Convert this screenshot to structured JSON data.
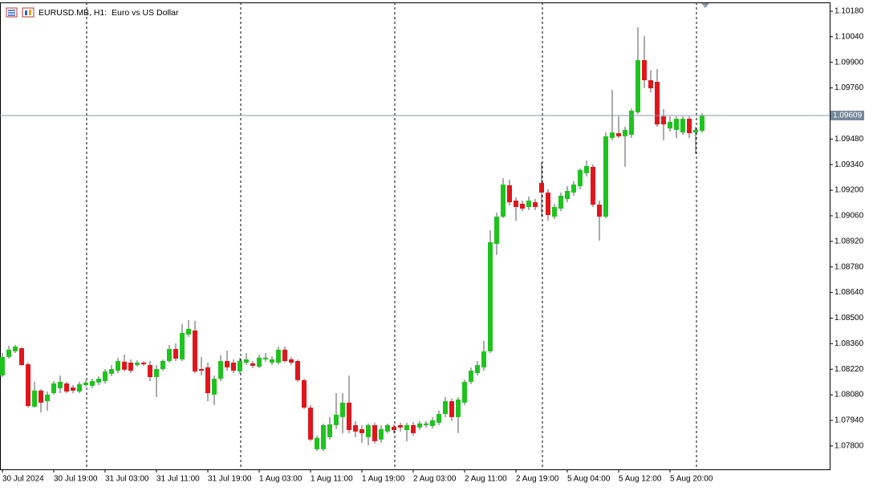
{
  "chart_data": {
    "type": "candlestick",
    "title": "EURUSD.MB, H1:  Euro vs US Dollar",
    "up_color": "#1ec31e",
    "down_color": "#e0161c",
    "wick_color": "#555555",
    "grid": false,
    "categories": [
      "30 Jul 2024",
      null,
      null,
      null,
      null,
      null,
      null,
      null,
      "30 Jul 19:00",
      null,
      null,
      null,
      null,
      null,
      null,
      null,
      "31 Jul 03:00",
      null,
      null,
      null,
      null,
      null,
      null,
      null,
      "31 Jul 11:00",
      null,
      null,
      null,
      null,
      null,
      null,
      null,
      "31 Jul 19:00",
      null,
      null,
      null,
      null,
      null,
      null,
      null,
      "1 Aug 03:00",
      null,
      null,
      null,
      null,
      null,
      null,
      null,
      "1 Aug 11:00",
      null,
      null,
      null,
      null,
      null,
      null,
      null,
      "1 Aug 19:00",
      null,
      null,
      null,
      null,
      null,
      null,
      null,
      "2 Aug 03:00",
      null,
      null,
      null,
      null,
      null,
      null,
      null,
      "2 Aug 11:00",
      null,
      null,
      null,
      null,
      null,
      null,
      null,
      "2 Aug 19:00",
      null,
      null,
      null,
      null,
      null,
      null,
      null,
      "5 Aug 04:00",
      null,
      null,
      null,
      null,
      null,
      null,
      null,
      "5 Aug 12:00",
      null,
      null,
      null,
      null,
      null,
      null,
      null,
      "5 Aug 20:00",
      null,
      null,
      null,
      null,
      null
    ],
    "period_separators": [
      13,
      37,
      61,
      84,
      108
    ],
    "open": [
      1.08186,
      1.08287,
      1.08318,
      1.08335,
      1.08247,
      1.08015,
      1.08103,
      1.08045,
      1.08089,
      1.08116,
      1.08142,
      1.0812,
      1.08098,
      1.08133,
      1.08129,
      1.08147,
      1.08155,
      1.08195,
      1.08212,
      1.08261,
      1.08256,
      1.08243,
      1.08256,
      1.08243,
      1.08177,
      1.08221,
      1.08265,
      1.08331,
      1.08274,
      1.0841,
      1.08432,
      1.08221,
      1.0823,
      1.08081,
      1.08168,
      1.08265,
      1.08256,
      1.08208,
      1.08256,
      1.08252,
      1.08234,
      1.08274,
      1.08256,
      1.08256,
      1.08327,
      1.08274,
      1.08265,
      1.0816,
      1.0801,
      1.07782,
      1.07782,
      1.07848,
      1.07914,
      1.07958,
      1.08037,
      1.07914,
      1.07892,
      1.07848,
      1.07914,
      1.07835,
      1.07879,
      1.07905,
      1.07914,
      1.07887,
      1.07914,
      1.07901,
      1.07914,
      1.07909,
      1.07927,
      1.07975,
      1.08045,
      1.07958,
      1.08037,
      1.08151,
      1.08199,
      1.0823,
      1.08318,
      1.08906,
      1.09055,
      1.09227,
      1.09143,
      1.09126,
      1.09108,
      1.09134,
      1.0924,
      1.09187,
      1.09055,
      1.09099,
      1.09152,
      1.09187,
      1.09222,
      1.09293,
      1.09328,
      1.09121,
      1.09055,
      1.09486,
      1.09512,
      1.09495,
      1.09503,
      1.09626,
      1.09912,
      1.09802,
      1.09793,
      1.09604,
      1.09538,
      1.0953,
      1.09516,
      1.09591,
      1.09516,
      1.09525
    ],
    "high": [
      1.08309,
      1.08348,
      1.08353,
      1.0834,
      1.08256,
      1.08151,
      1.08111,
      1.08098,
      1.08155,
      1.08186,
      1.08151,
      1.08133,
      1.08151,
      1.0816,
      1.08168,
      1.08182,
      1.08221,
      1.08243,
      1.08283,
      1.083,
      1.08274,
      1.08269,
      1.08265,
      1.08265,
      1.08243,
      1.08274,
      1.08353,
      1.08362,
      1.08467,
      1.08489,
      1.08485,
      1.08287,
      1.08256,
      1.08186,
      1.08296,
      1.08322,
      1.08274,
      1.08283,
      1.08309,
      1.08265,
      1.083,
      1.08309,
      1.08291,
      1.08344,
      1.08344,
      1.08287,
      1.08274,
      1.08168,
      1.08024,
      1.07857,
      1.07923,
      1.07958,
      1.08089,
      1.08089,
      1.08186,
      1.07936,
      1.07914,
      1.07923,
      1.07927,
      1.07914,
      1.07923,
      1.07918,
      1.07927,
      1.07927,
      1.07931,
      1.07936,
      1.07936,
      1.07958,
      1.07993,
      1.08067,
      1.08059,
      1.08067,
      1.08164,
      1.0823,
      1.08265,
      1.08375,
      1.08981,
      1.09077,
      1.09266,
      1.09257,
      1.09161,
      1.09143,
      1.09165,
      1.09152,
      1.09354,
      1.09205,
      1.09126,
      1.09187,
      1.09222,
      1.09249,
      1.09319,
      1.09363,
      1.09341,
      1.09143,
      1.09516,
      1.09749,
      1.09604,
      1.09547,
      1.09648,
      1.10092,
      1.10043,
      1.09855,
      1.09863,
      1.09644,
      1.09604,
      1.09604,
      1.09604,
      1.09604,
      1.09547,
      1.09622
    ],
    "low": [
      1.08177,
      1.08278,
      1.08309,
      1.08239,
      1.0801,
      1.0801,
      1.07984,
      1.07993,
      1.08081,
      1.08089,
      1.08089,
      1.08089,
      1.08089,
      1.08125,
      1.08116,
      1.08133,
      1.08142,
      1.08182,
      1.08199,
      1.08208,
      1.08199,
      1.08234,
      1.08239,
      1.08155,
      1.08067,
      1.08212,
      1.08256,
      1.08265,
      1.08265,
      1.08397,
      1.08199,
      1.08186,
      1.08045,
      1.08024,
      1.08155,
      1.08212,
      1.08199,
      1.08195,
      1.08243,
      1.08226,
      1.08226,
      1.08261,
      1.08243,
      1.08247,
      1.08256,
      1.08243,
      1.08151,
      1.08002,
      1.07826,
      1.07773,
      1.07773,
      1.07835,
      1.07892,
      1.0787,
      1.0787,
      1.07848,
      1.07817,
      1.07804,
      1.07813,
      1.07817,
      1.0787,
      1.0787,
      1.07879,
      1.07826,
      1.07857,
      1.07887,
      1.07901,
      1.07896,
      1.07914,
      1.07958,
      1.07936,
      1.0787,
      1.08024,
      1.08138,
      1.08186,
      1.08212,
      1.08309,
      1.08845,
      1.09047,
      1.09117,
      1.09033,
      1.09086,
      1.09091,
      1.09091,
      1.09055,
      1.09033,
      1.09042,
      1.09086,
      1.09134,
      1.0917,
      1.09205,
      1.09275,
      1.09108,
      1.08924,
      1.09047,
      1.09473,
      1.09486,
      1.09328,
      1.09486,
      1.09617,
      1.09758,
      1.09736,
      1.09547,
      1.09473,
      1.09521,
      1.09486,
      1.09503,
      1.09486,
      1.09398,
      1.09516
    ],
    "close": [
      1.08287,
      1.08327,
      1.08344,
      1.08243,
      1.08019,
      1.08103,
      1.08037,
      1.08081,
      1.08142,
      1.08151,
      1.08098,
      1.08103,
      1.08138,
      1.08147,
      1.08155,
      1.08168,
      1.08208,
      1.08221,
      1.08265,
      1.08217,
      1.08212,
      1.08256,
      1.08247,
      1.08177,
      1.08221,
      1.08265,
      1.08331,
      1.08278,
      1.08419,
      1.08441,
      1.08208,
      1.08212,
      1.08089,
      1.08168,
      1.08265,
      1.0823,
      1.08212,
      1.08265,
      1.08274,
      1.08239,
      1.08283,
      1.08283,
      1.08274,
      1.08327,
      1.08265,
      1.08256,
      1.0816,
      1.0801,
      1.07835,
      1.07844,
      1.07914,
      1.07918,
      1.07971,
      1.08037,
      1.07887,
      1.07879,
      1.0787,
      1.07914,
      1.07826,
      1.07892,
      1.07914,
      1.07887,
      1.07901,
      1.07914,
      1.0787,
      1.07923,
      1.07923,
      1.0794,
      1.07975,
      1.08045,
      1.07958,
      1.08054,
      1.08151,
      1.08212,
      1.08243,
      1.08318,
      1.08915,
      1.09055,
      1.09231,
      1.09134,
      1.09108,
      1.09099,
      1.09143,
      1.09108,
      1.09187,
      1.09064,
      1.09108,
      1.0917,
      1.09196,
      1.09231,
      1.0931,
      1.09332,
      1.09121,
      1.09055,
      1.09495,
      1.09516,
      1.09495,
      1.0953,
      1.09635,
      1.09912,
      1.09802,
      1.09758,
      1.0956,
      1.0956,
      1.09574,
      1.09591,
      1.09591,
      1.09512,
      1.0953,
      1.09609
    ],
    "last_price": 1.09609,
    "ylim": [
      1.07672,
      1.10228
    ],
    "yticks": [
      {
        "value": 1.078,
        "label": "1.07800"
      },
      {
        "value": 1.0794,
        "label": "1.07940"
      },
      {
        "value": 1.0808,
        "label": "1.08080"
      },
      {
        "value": 1.0822,
        "label": "1.08220"
      },
      {
        "value": 1.0836,
        "label": "1.08360"
      },
      {
        "value": 1.085,
        "label": "1.08500"
      },
      {
        "value": 1.0864,
        "label": "1.08640"
      },
      {
        "value": 1.0878,
        "label": "1.08780"
      },
      {
        "value": 1.0892,
        "label": "1.08920"
      },
      {
        "value": 1.0906,
        "label": "1.09060"
      },
      {
        "value": 1.092,
        "label": "1.09200"
      },
      {
        "value": 1.0934,
        "label": "1.09340"
      },
      {
        "value": 1.0948,
        "label": "1.09480"
      },
      {
        "value": 1.0976,
        "label": "1.09760"
      },
      {
        "value": 1.099,
        "label": "1.09900"
      },
      {
        "value": 1.1004,
        "label": "1.10040"
      },
      {
        "value": 1.1018,
        "label": "1.10180"
      }
    ]
  }
}
